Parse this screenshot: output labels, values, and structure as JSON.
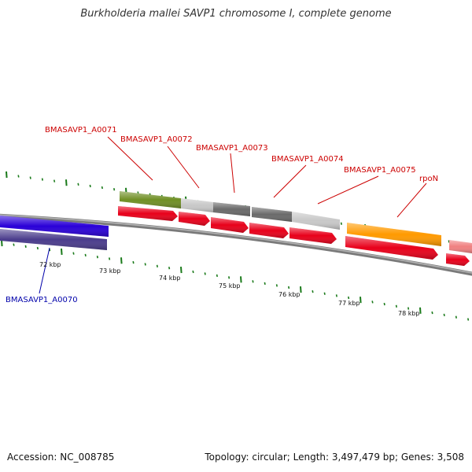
{
  "title": "Burkholderia mallei SAVP1 chromosome I, complete genome",
  "accession": "Accession: NC_008785",
  "summary": "Topology: circular; Length: 3,497,479 bp; Genes: 3,508",
  "colors": {
    "gene_forward": "#e8001a",
    "gene_reverse": "#2a00d8",
    "cds_reverse": "#4a3c8c",
    "feature_olive": "#6f8f25",
    "feature_light_gray": "#c8c8c8",
    "feature_dark_gray": "#6a6a6a",
    "feature_orange": "#ff9a00",
    "feature_pink": "#f08080",
    "backbone": "#8a8a8a",
    "tick": "#1a7a1a",
    "forward_label": "#cc0000",
    "reverse_label": "#0000aa"
  },
  "kbp_ticks": [
    "72 kbp",
    "73 kbp",
    "74 kbp",
    "75 kbp",
    "76 kbp",
    "77 kbp",
    "78 kbp"
  ],
  "genes": [
    {
      "name": "BMASAVP1_A0070",
      "strand": "reverse"
    },
    {
      "name": "BMASAVP1_A0071",
      "strand": "forward"
    },
    {
      "name": "BMASAVP1_A0072",
      "strand": "forward"
    },
    {
      "name": "BMASAVP1_A0073",
      "strand": "forward"
    },
    {
      "name": "BMASAVP1_A0074",
      "strand": "forward"
    },
    {
      "name": "BMASAVP1_A0075",
      "strand": "forward"
    },
    {
      "name": "rpoN",
      "strand": "forward"
    }
  ]
}
